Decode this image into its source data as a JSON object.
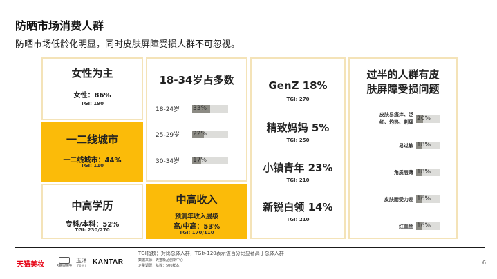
{
  "page": {
    "title": "防晒市场消费人群",
    "subtitle": "防晒市场低龄化明显，同时皮肤屏障受损人群不可忽视。",
    "page_number": "6"
  },
  "card_female": {
    "heading": "女性为主",
    "stat": "女性：86%",
    "tgi": "TGI: 190"
  },
  "card_city": {
    "heading": "一二线城市",
    "stat": "一二线城市：44%",
    "tgi": "TGI: 110"
  },
  "card_edu": {
    "heading": "中高学历",
    "stat": "专科/本科：52%",
    "tgi": "TGI: 230/270"
  },
  "card_age": {
    "heading": "18-34岁占多数",
    "bars": [
      {
        "label": "18-24岁",
        "value": "33%",
        "fraction": 0.33
      },
      {
        "label": "25-29岁",
        "value": "22%",
        "fraction": 0.22
      },
      {
        "label": "30-34岁",
        "value": "17%",
        "fraction": 0.17
      }
    ]
  },
  "card_income": {
    "heading": "中高收入",
    "stat_line1": "预测年收入层级",
    "stat_line2": "高/中高：53%",
    "tgi": "TGI: 170/110"
  },
  "card_segments": {
    "items": [
      {
        "label": "GenZ 18%",
        "tgi": "TGI: 270"
      },
      {
        "label": "精致妈妈 5%",
        "tgi": "TGI: 250"
      },
      {
        "label": "小镇青年 23%",
        "tgi": "TGI: 210"
      },
      {
        "label": "新锐白领 14%",
        "tgi": "TGI: 210"
      }
    ]
  },
  "card_skin": {
    "heading_line1": "过半的人群有皮",
    "heading_line2": "肤屏障受损问题",
    "bars": [
      {
        "label_line1": "皮肤易瘙痒、泛",
        "label_line2": "红、灼热、刺痛",
        "value": "20%",
        "fraction": 0.2
      },
      {
        "label_line1": "易过敏",
        "label_line2": "",
        "value": "18%",
        "fraction": 0.18
      },
      {
        "label_line1": "角质层薄",
        "label_line2": "",
        "value": "18%",
        "fraction": 0.18
      },
      {
        "label_line1": "皮肤耐受力差",
        "label_line2": "",
        "value": "16%",
        "fraction": 0.16
      },
      {
        "label_line1": "红血丝",
        "label_line2": "",
        "value": "16%",
        "fraction": 0.16
      }
    ]
  },
  "footer": {
    "note_main": "TGI指数：对比总体人群，TGI>120表示该百分比显著高于总体人群",
    "note_source": "数据来源：天猫新品创新中心",
    "note_method": "定量调研，基数：500样本"
  },
  "logos": {
    "tmall": "天猫美妆",
    "tmic": "天猫新品创新中心",
    "yuze": "玉泽",
    "yuze_sub": "DR.YU",
    "kantar": "KANTAR"
  },
  "colors": {
    "gold": "#FBBB09",
    "frame": "#F4E3B8",
    "bar_fill": "#8C8B84",
    "bar_bg": "#DDDDDA",
    "tmall_red": "#E60012"
  }
}
